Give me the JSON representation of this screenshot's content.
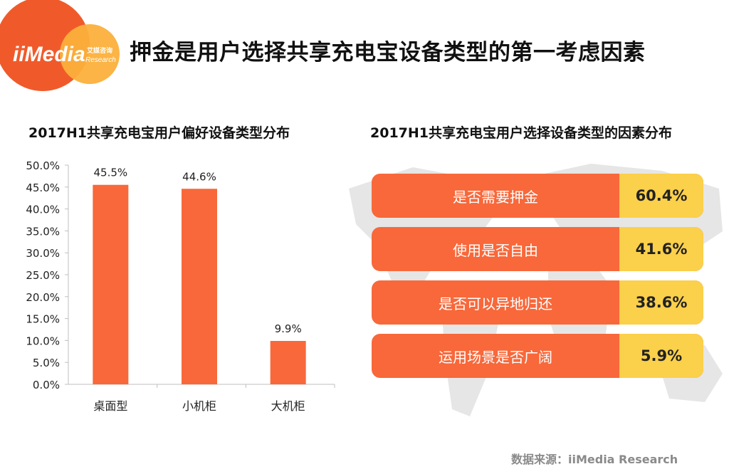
{
  "logo": {
    "brand": "iiMedia",
    "cn": "艾媒咨询",
    "en": "Research"
  },
  "page_title": "押金是用户选择共享充电宝设备类型的第一考虑因素",
  "left_title": "2017H1共享充电宝用户偏好设备类型分布",
  "right_title": "2017H1共享充电宝用户选择设备类型的因素分布",
  "colors": {
    "bar": "#f8683a",
    "accent": "#fbd04a",
    "logo_red": "#f05a2a",
    "logo_orange": "#fbb03b"
  },
  "chart_data": [
    {
      "type": "bar",
      "title": "2017H1共享充电宝用户偏好设备类型分布",
      "categories": [
        "桌面型",
        "小机柜",
        "大机柜"
      ],
      "values": [
        45.5,
        44.6,
        9.9
      ],
      "value_labels": [
        "45.5%",
        "44.6%",
        "9.9%"
      ],
      "ylim": [
        0,
        50
      ],
      "yticks": [
        "0.0%",
        "5.0%",
        "10.0%",
        "15.0%",
        "20.0%",
        "25.0%",
        "30.0%",
        "35.0%",
        "40.0%",
        "45.0%",
        "50.0%"
      ],
      "xlabel": "",
      "ylabel": ""
    },
    {
      "type": "bar",
      "title": "2017H1共享充电宝用户选择设备类型的因素分布",
      "categories": [
        "是否需要押金",
        "使用是否自由",
        "是否可以异地归还",
        "运用场景是否广阔"
      ],
      "values": [
        60.4,
        41.6,
        38.6,
        5.9
      ],
      "value_labels": [
        "60.4%",
        "41.6%",
        "38.6%",
        "5.9%"
      ]
    }
  ],
  "source": "数据来源：iiMedia Research"
}
